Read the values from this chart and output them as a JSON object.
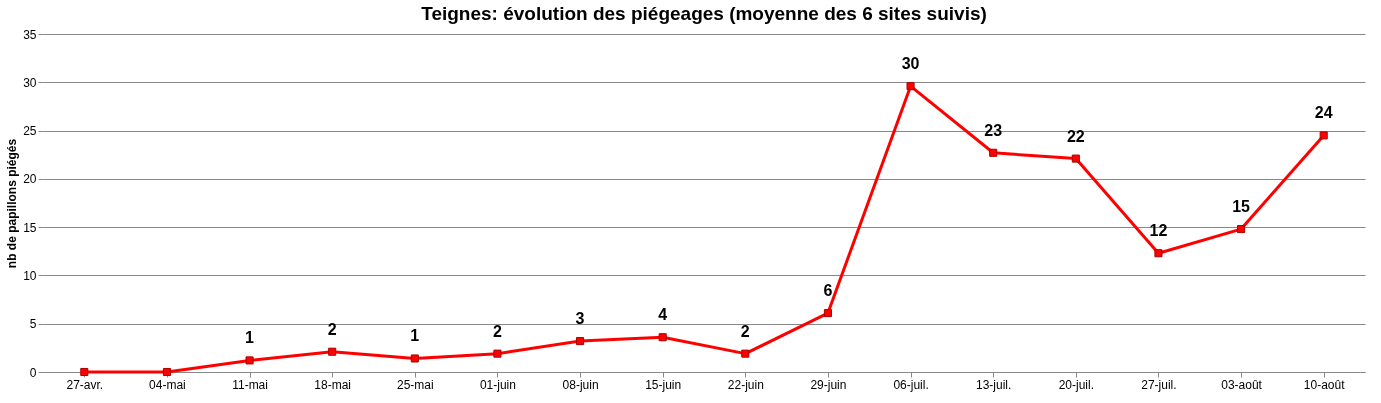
{
  "chart_data": {
    "type": "line",
    "title": "Teignes: évolution des piégeages  (moyenne des 6 sites suivis)",
    "ylabel": "nb de papillons piégés",
    "categories": [
      "27-avr.",
      "04-mai",
      "11-mai",
      "18-mai",
      "25-mai",
      "01-juin",
      "08-juin",
      "15-juin",
      "22-juin",
      "29-juin",
      "06-juil.",
      "13-juil.",
      "20-juil.",
      "27-juil.",
      "03-août",
      "10-août"
    ],
    "series": [
      {
        "color": "#ff0000",
        "values": [
          0,
          0,
          1.2,
          2.1,
          1.4,
          1.9,
          3.2,
          3.6,
          1.9,
          6.1,
          29.6,
          22.7,
          22.1,
          12.3,
          14.8,
          24.5
        ],
        "value_labels": [
          null,
          null,
          "1",
          "2",
          "1",
          "2",
          "3",
          "4",
          "2",
          "6",
          "30",
          "23",
          "22",
          "12",
          "15",
          "24"
        ]
      }
    ],
    "ylim": [
      0,
      35
    ],
    "yticks": [
      0,
      5,
      10,
      15,
      20,
      25,
      30,
      35
    ],
    "grid": "y",
    "marker": "square",
    "line_style": "solid"
  }
}
